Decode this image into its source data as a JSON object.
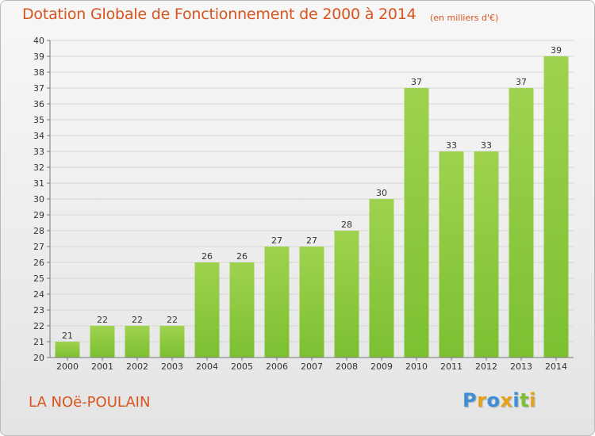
{
  "chart_data": {
    "type": "bar",
    "title": "Dotation Globale de Fonctionnement de 2000 à 2014",
    "subtitle": "(en milliers d'€)",
    "categories": [
      "2000",
      "2001",
      "2002",
      "2003",
      "2004",
      "2005",
      "2006",
      "2007",
      "2008",
      "2009",
      "2010",
      "2011",
      "2012",
      "2013",
      "2014"
    ],
    "values": [
      21,
      22,
      22,
      22,
      26,
      26,
      27,
      27,
      28,
      30,
      37,
      33,
      33,
      37,
      39
    ],
    "ylim": [
      20,
      40
    ],
    "yticks": [
      20,
      21,
      22,
      23,
      24,
      25,
      26,
      27,
      28,
      29,
      30,
      31,
      32,
      33,
      34,
      35,
      36,
      37,
      38,
      39,
      40
    ],
    "grid": true,
    "bar_color": "#7cc032",
    "bar_color_light": "#9fd24e",
    "title_color": "#d9531e"
  },
  "footer": {
    "place_name": "LA NOë-POULAIN"
  },
  "logo": {
    "text": "Proxiti",
    "letters": [
      {
        "ch": "P",
        "color": "#3a8fd6"
      },
      {
        "ch": "r",
        "color": "#e8a21a"
      },
      {
        "ch": "o",
        "color": "#3a8fd6"
      },
      {
        "ch": "x",
        "color": "#e8a21a"
      },
      {
        "ch": "i",
        "color": "#3a8fd6"
      },
      {
        "ch": "t",
        "color": "#7cc032"
      },
      {
        "ch": "i",
        "color": "#e8a21a"
      }
    ]
  }
}
